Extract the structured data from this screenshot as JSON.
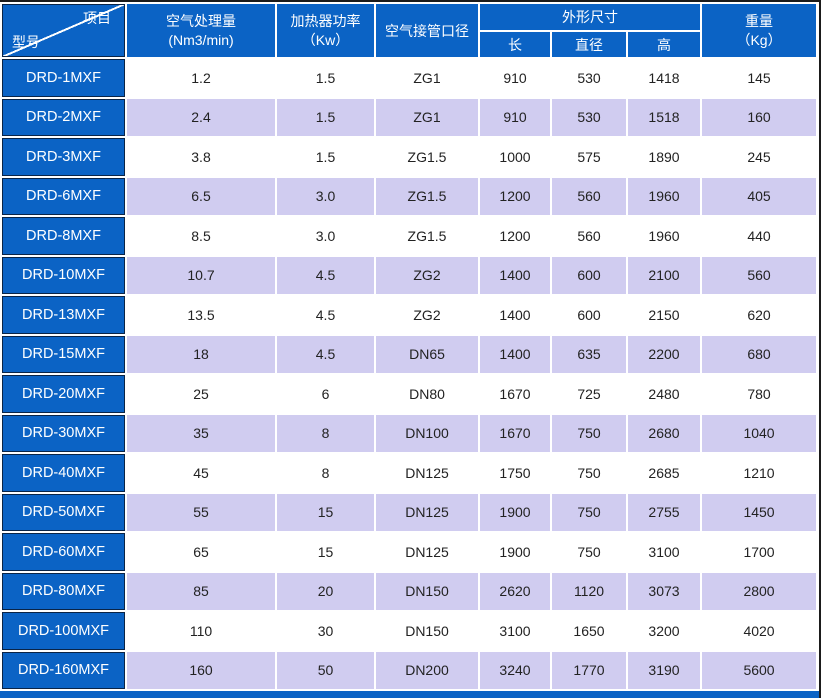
{
  "colors": {
    "header_blue": "#0b63c5",
    "row_lavender": "#d0ccf0",
    "row_white": "#ffffff",
    "frame_dark": "#1b1b1b",
    "label_cell_outline": "#0a2446",
    "data_text": "#222222",
    "header_text": "#ffffff"
  },
  "table": {
    "header": {
      "corner_top": "项目",
      "corner_bottom": "型号",
      "air_flow_line1": "空气处理量",
      "air_flow_line2": "(Nm3/min)",
      "heater_power_line1": "加热器功率",
      "heater_power_line2": "（Kw）",
      "pipe_diameter": "空气接管口径",
      "dimensions": "外形尺寸",
      "dim_length": "长",
      "dim_diameter": "直径",
      "dim_height": "高",
      "weight_line1": "重量",
      "weight_line2": "（Kg）"
    },
    "row_keys": [
      "model",
      "air_flow",
      "heater_power",
      "pipe",
      "length",
      "diameter",
      "height",
      "weight"
    ],
    "rows": [
      {
        "model": "DRD-1MXF",
        "air_flow": "1.2",
        "heater_power": "1.5",
        "pipe": "ZG1",
        "length": "910",
        "diameter": "530",
        "height": "1418",
        "weight": "145"
      },
      {
        "model": "DRD-2MXF",
        "air_flow": "2.4",
        "heater_power": "1.5",
        "pipe": "ZG1",
        "length": "910",
        "diameter": "530",
        "height": "1518",
        "weight": "160"
      },
      {
        "model": "DRD-3MXF",
        "air_flow": "3.8",
        "heater_power": "1.5",
        "pipe": "ZG1.5",
        "length": "1000",
        "diameter": "575",
        "height": "1890",
        "weight": "245"
      },
      {
        "model": "DRD-6MXF",
        "air_flow": "6.5",
        "heater_power": "3.0",
        "pipe": "ZG1.5",
        "length": "1200",
        "diameter": "560",
        "height": "1960",
        "weight": "405"
      },
      {
        "model": "DRD-8MXF",
        "air_flow": "8.5",
        "heater_power": "3.0",
        "pipe": "ZG1.5",
        "length": "1200",
        "diameter": "560",
        "height": "1960",
        "weight": "440"
      },
      {
        "model": "DRD-10MXF",
        "air_flow": "10.7",
        "heater_power": "4.5",
        "pipe": "ZG2",
        "length": "1400",
        "diameter": "600",
        "height": "2100",
        "weight": "560"
      },
      {
        "model": "DRD-13MXF",
        "air_flow": "13.5",
        "heater_power": "4.5",
        "pipe": "ZG2",
        "length": "1400",
        "diameter": "600",
        "height": "2150",
        "weight": "620"
      },
      {
        "model": "DRD-15MXF",
        "air_flow": "18",
        "heater_power": "4.5",
        "pipe": "DN65",
        "length": "1400",
        "diameter": "635",
        "height": "2200",
        "weight": "680"
      },
      {
        "model": "DRD-20MXF",
        "air_flow": "25",
        "heater_power": "6",
        "pipe": "DN80",
        "length": "1670",
        "diameter": "725",
        "height": "2480",
        "weight": "780"
      },
      {
        "model": "DRD-30MXF",
        "air_flow": "35",
        "heater_power": "8",
        "pipe": "DN100",
        "length": "1670",
        "diameter": "750",
        "height": "2680",
        "weight": "1040"
      },
      {
        "model": "DRD-40MXF",
        "air_flow": "45",
        "heater_power": "8",
        "pipe": "DN125",
        "length": "1750",
        "diameter": "750",
        "height": "2685",
        "weight": "1210"
      },
      {
        "model": "DRD-50MXF",
        "air_flow": "55",
        "heater_power": "15",
        "pipe": "DN125",
        "length": "1900",
        "diameter": "750",
        "height": "2755",
        "weight": "1450"
      },
      {
        "model": "DRD-60MXF",
        "air_flow": "65",
        "heater_power": "15",
        "pipe": "DN125",
        "length": "1900",
        "diameter": "750",
        "height": "3100",
        "weight": "1700"
      },
      {
        "model": "DRD-80MXF",
        "air_flow": "85",
        "heater_power": "20",
        "pipe": "DN150",
        "length": "2620",
        "diameter": "1120",
        "height": "3073",
        "weight": "2800"
      },
      {
        "model": "DRD-100MXF",
        "air_flow": "110",
        "heater_power": "30",
        "pipe": "DN150",
        "length": "3100",
        "diameter": "1650",
        "height": "3200",
        "weight": "4020"
      },
      {
        "model": "DRD-160MXF",
        "air_flow": "160",
        "heater_power": "50",
        "pipe": "DN200",
        "length": "3240",
        "diameter": "1770",
        "height": "3190",
        "weight": "5600"
      }
    ]
  }
}
